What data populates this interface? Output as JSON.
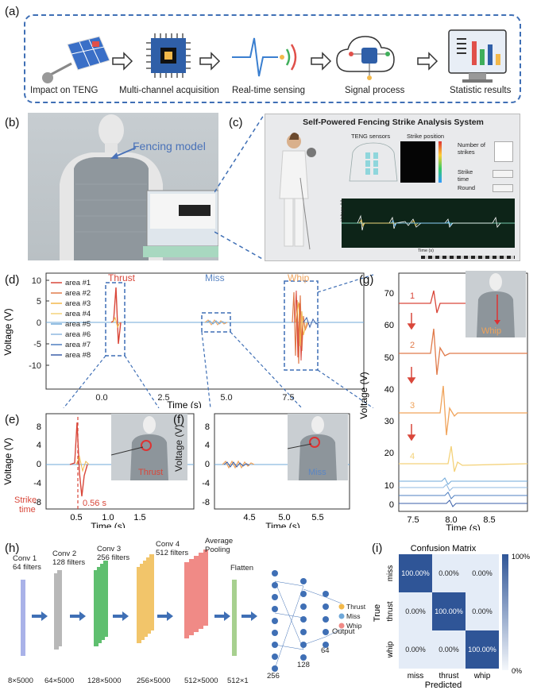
{
  "panels": {
    "a": "(a)",
    "b": "(b)",
    "c": "(c)",
    "d": "(d)",
    "e": "(e)",
    "f": "(f)",
    "g": "(g)",
    "h": "(h)",
    "i": "(i)"
  },
  "pipeline": {
    "steps": [
      "Impact on TENG",
      "Multi-channel acquisition",
      "Real-time sensing",
      "Signal process",
      "Statistic results"
    ]
  },
  "photo_b": {
    "annotation": "Fencing model"
  },
  "screen_c": {
    "title": "Self-Powered Fencing Strike Analysis System",
    "teng_label": "TENG sensors",
    "strike_pos_label": "Strike position",
    "num_strikes_label": "Number of strikes",
    "strike_time_label": "Strike time",
    "round_label": "Round",
    "voltage_axis": "Voltage (V)",
    "time_axis": "Time (s)"
  },
  "colors": {
    "area1": "#d9473a",
    "area2": "#e07a4a",
    "area3": "#f2b84a",
    "area4": "#f4d27a",
    "area5": "#6fa8d9",
    "area6": "#8fb8e0",
    "area7": "#4f7fc0",
    "area8": "#3a5fa8",
    "dash": "#3f6fb5",
    "thrust": "#d9473a",
    "miss": "#5b86c4",
    "whip": "#f0a35a"
  },
  "chart_d": {
    "ylabel": "Voltage (V)",
    "xlabel": "Time (s)",
    "yticks": [
      "10",
      "5",
      "0",
      "-5",
      "-10"
    ],
    "xticks": [
      "0.0",
      "2.5",
      "5.0",
      "7.5"
    ],
    "legend": [
      "area #1",
      "area #2",
      "area #3",
      "area #4",
      "area #5",
      "area #6",
      "area #7",
      "area #8"
    ],
    "ann_thrust": "Thrust",
    "ann_miss": "Miss",
    "ann_whip": "Whip"
  },
  "chart_e": {
    "ylabel": "Voltage (V)",
    "xlabel": "Time (s)",
    "yticks": [
      "8",
      "4",
      "0",
      "-4",
      "-8"
    ],
    "xticks": [
      "0.5",
      "1.0",
      "1.5"
    ],
    "strike_label_1": "Strike",
    "strike_label_2": "time",
    "time_mark": "0.56 s",
    "tag": "Thrust"
  },
  "chart_f": {
    "ylabel": "Voltage (V)",
    "xlabel": "Time (s)",
    "yticks": [
      "8",
      "4",
      "0",
      "-4",
      "-8"
    ],
    "xticks": [
      "4.5",
      "5.0",
      "5.5"
    ],
    "tag": "Miss"
  },
  "chart_g": {
    "ylabel": "Voltage (V)",
    "xlabel": "Time (s)",
    "yticks": [
      "70",
      "60",
      "50",
      "40",
      "30",
      "20",
      "10",
      "0"
    ],
    "xticks": [
      "7.5",
      "8.0",
      "8.5"
    ],
    "labels": [
      "1",
      "2",
      "3",
      "4"
    ],
    "tag": "Whip"
  },
  "cnn": {
    "layers": [
      {
        "name": "Conv 1",
        "filters": "64 filters",
        "size": "8×5000"
      },
      {
        "name": "Conv 2",
        "filters": "128 filters",
        "size": "64×5000"
      },
      {
        "name": "Conv 3",
        "filters": "256 filters",
        "size": "128×5000"
      },
      {
        "name": "Conv 4",
        "filters": "512 filters",
        "size": "256×5000"
      },
      {
        "name": "Average",
        "filters": "Pooling",
        "size": "512×5000"
      },
      {
        "name": "Flatten",
        "filters": "",
        "size": "512×1"
      }
    ],
    "nodes": [
      "256",
      "128",
      "64"
    ],
    "output_label": "Output",
    "outputs": [
      "Thrust",
      "Miss",
      "Whip"
    ]
  },
  "chart_data": {
    "type": "heatmap",
    "title": "Confusion Matrix",
    "xlabel": "Predicted",
    "ylabel": "True",
    "rows": [
      "miss",
      "thrust",
      "whip"
    ],
    "cols": [
      "miss",
      "thrust",
      "whip"
    ],
    "values": [
      [
        "100.00%",
        "0.00%",
        "0.00%"
      ],
      [
        "0.00%",
        "100.00%",
        "0.00%"
      ],
      [
        "0.00%",
        "0.00%",
        "100.00%"
      ]
    ],
    "colorbar": [
      "100%",
      "0%"
    ]
  }
}
